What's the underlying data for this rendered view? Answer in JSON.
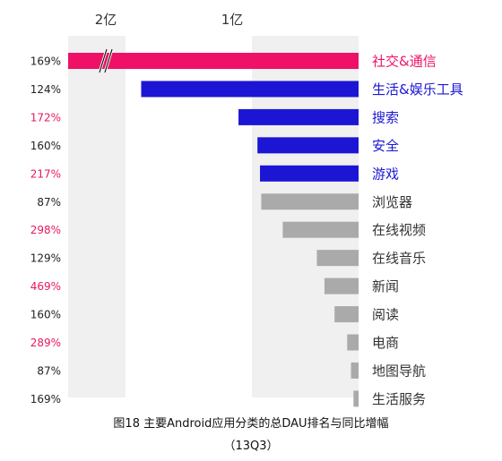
{
  "chart_data": {
    "type": "bar",
    "orientation": "horizontal",
    "title": "图18 主要Android应用分类的总DAU排名与同比增幅",
    "subtitle": "（13Q3）",
    "x_ticks": [
      {
        "label": "2亿",
        "value": 200000000
      },
      {
        "label": "1亿",
        "value": 100000000
      }
    ],
    "categories": [
      "社交&通信",
      "生活&娱乐工具",
      "搜索",
      "安全",
      "游戏",
      "浏览器",
      "在线视频",
      "在线音乐",
      "新闻",
      "阅读",
      "电商",
      "地图导航",
      "生活服务"
    ],
    "values": [
      330000000,
      172000000,
      95000000,
      80000000,
      78000000,
      77000000,
      60000000,
      33000000,
      27000000,
      19000000,
      9000000,
      6000000,
      4000000
    ],
    "growth": [
      "169%",
      "124%",
      "172%",
      "160%",
      "217%",
      "87%",
      "298%",
      "129%",
      "469%",
      "160%",
      "289%",
      "87%",
      "169%"
    ],
    "axis_break_on": "社交&通信",
    "grid": false,
    "colors": {
      "social": "#ee1166",
      "top_apps": "#1c16d4",
      "other": "#aaaaaa",
      "high_growth_text": "#e8185f",
      "normal_text": "#222222",
      "band": "#f0f0f0"
    }
  }
}
